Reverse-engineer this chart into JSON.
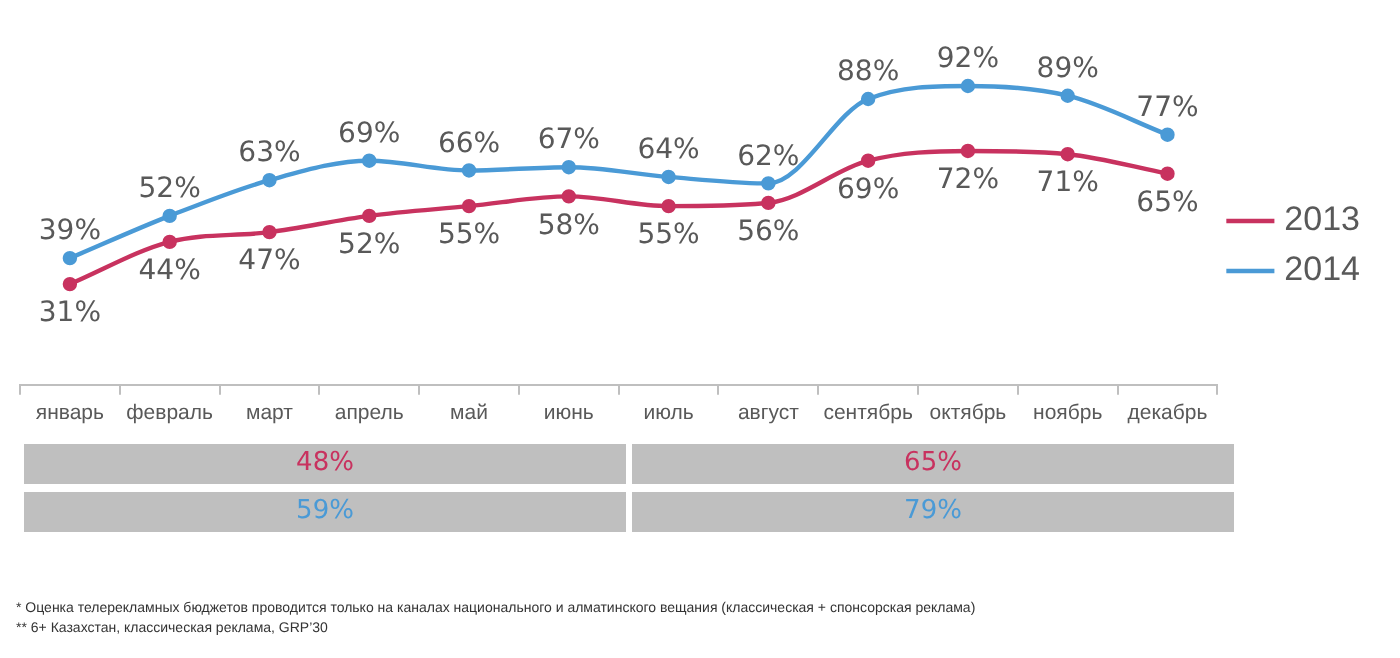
{
  "chart_data": {
    "type": "line",
    "categories": [
      "январь",
      "февраль",
      "март",
      "апрель",
      "май",
      "июнь",
      "июль",
      "август",
      "сентябрь",
      "октябрь",
      "ноябрь",
      "декабрь"
    ],
    "series": [
      {
        "name": "2013",
        "color": "#c8325f",
        "values": [
          31,
          44,
          47,
          52,
          55,
          58,
          55,
          56,
          69,
          72,
          71,
          65
        ],
        "value_labels": [
          "31%",
          "44%",
          "47%",
          "52%",
          "55%",
          "58%",
          "55%",
          "56%",
          "69%",
          "72%",
          "71%",
          "65%"
        ]
      },
      {
        "name": "2014",
        "color": "#4a9ad6",
        "values": [
          39,
          52,
          63,
          69,
          66,
          67,
          64,
          62,
          88,
          92,
          89,
          77
        ],
        "value_labels": [
          "39%",
          "52%",
          "63%",
          "69%",
          "66%",
          "67%",
          "64%",
          "62%",
          "88%",
          "92%",
          "89%",
          "77%"
        ]
      }
    ],
    "tick_labels": "x",
    "grid": false,
    "legend": "right",
    "marker": "circle",
    "line_style": "solid",
    "annotations": [
      "48%",
      "65%",
      "59%",
      "79%",
      "* Оценка телерекламных бюджетов проводится только на каналах национального и алматинского вещания (классическая + спонсорская реклама)",
      "** 6+ Казахстан, классическая реклама, GRP’30"
    ]
  }
}
